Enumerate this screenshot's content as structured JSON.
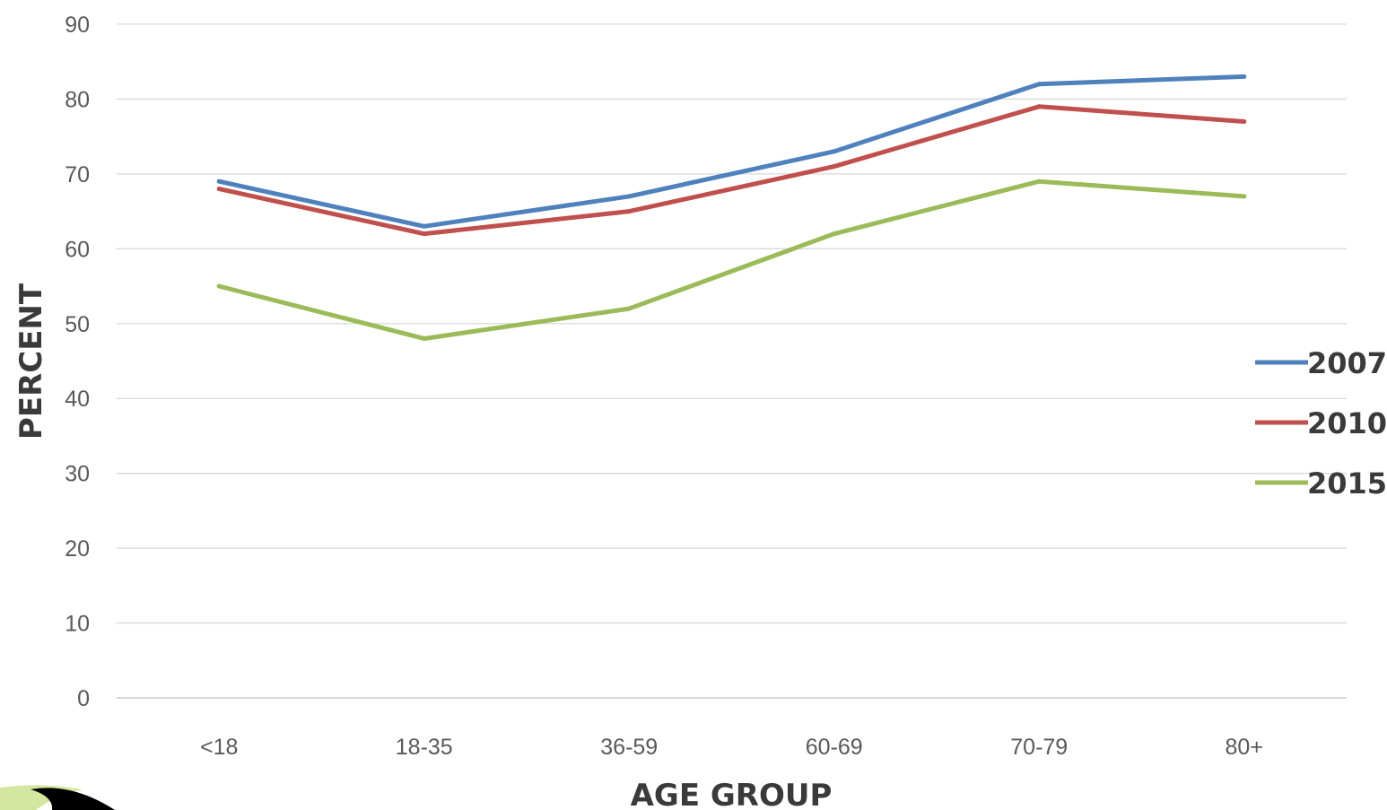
{
  "chart_data": {
    "type": "line",
    "title": "",
    "xlabel": "AGE GROUP",
    "ylabel": "PERCENT",
    "categories": [
      "<18",
      "18-35",
      "36-59",
      "60-69",
      "70-79",
      "80+"
    ],
    "ylim": [
      0,
      90
    ],
    "yticks": [
      0,
      10,
      20,
      30,
      40,
      50,
      60,
      70,
      80,
      90
    ],
    "grid": true,
    "legend_position": "right",
    "series": [
      {
        "name": "2007",
        "color": "#4f81bd",
        "values": [
          69,
          63,
          67,
          73,
          82,
          83
        ]
      },
      {
        "name": "2010",
        "color": "#c0504d",
        "values": [
          68,
          62,
          65,
          71,
          79,
          77
        ]
      },
      {
        "name": "2015",
        "color": "#9bbb59",
        "values": [
          55,
          48,
          52,
          62,
          69,
          67
        ]
      }
    ]
  },
  "logo": {
    "icon": "logo-icon",
    "colors": [
      "#d4e7a0",
      "#000000"
    ]
  }
}
